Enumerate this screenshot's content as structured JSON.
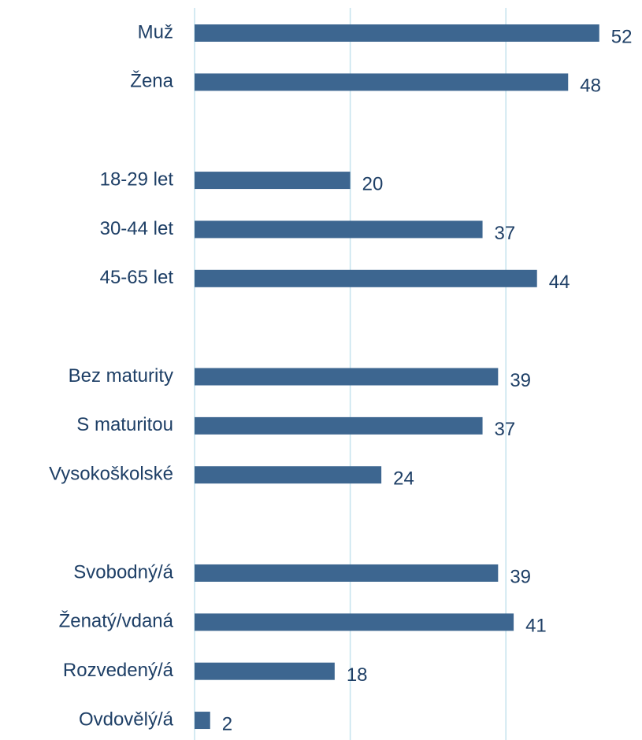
{
  "chart_data": {
    "type": "barh",
    "categories": [
      "Muž",
      "Žena",
      null,
      "18-29 let",
      "30-44 let",
      "45-65 let",
      null,
      "Bez maturity",
      "S maturitou",
      "Vysokoškolské",
      null,
      "Svobodný/á",
      "Ženatý/vdaná",
      "Rozvedený/á",
      "Ovdovělý/á"
    ],
    "values": [
      52,
      48,
      null,
      20,
      37,
      44,
      null,
      39,
      37,
      24,
      null,
      39,
      41,
      18,
      2
    ],
    "color": "#3d6690",
    "xlim": [
      0,
      57
    ],
    "xticks": [
      0,
      20,
      40
    ],
    "grid": true
  }
}
